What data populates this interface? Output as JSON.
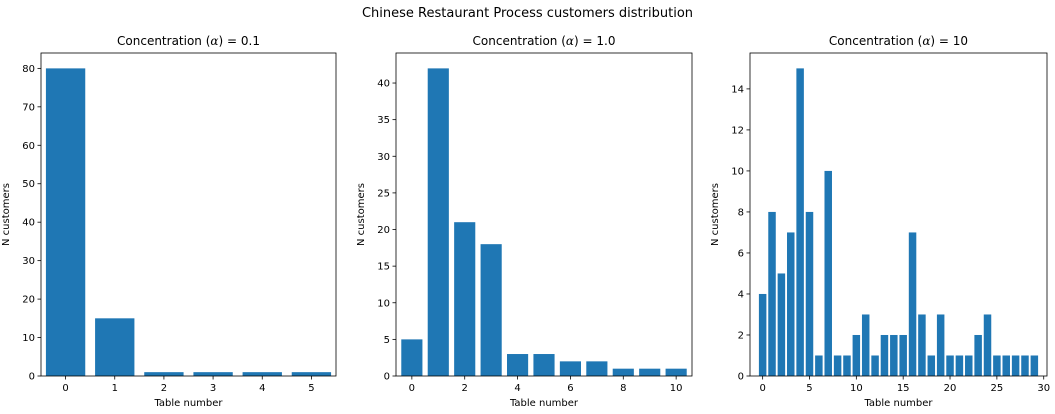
{
  "figure": {
    "suptitle": "Chinese Restaurant Process customers distribution"
  },
  "chart_data": [
    {
      "type": "bar",
      "title": "Concentration (α) = 0.1",
      "xlabel": "Table number",
      "ylabel": "N customers",
      "x": [
        0,
        1,
        2,
        3,
        4,
        5
      ],
      "values": [
        80,
        15,
        1,
        1,
        1,
        1
      ],
      "xlim": [
        -0.5,
        5.5
      ],
      "ylim": [
        0,
        84
      ],
      "xticks": [
        0,
        1,
        2,
        3,
        4,
        5
      ],
      "yticks": [
        0,
        10,
        20,
        30,
        40,
        50,
        60,
        70,
        80
      ],
      "color": "#1f77b4",
      "grid": false
    },
    {
      "type": "bar",
      "title": "Concentration (α) = 1.0",
      "xlabel": "Table number",
      "ylabel": "N customers",
      "x": [
        0,
        1,
        2,
        3,
        4,
        5,
        6,
        7,
        8,
        9,
        10
      ],
      "values": [
        5,
        42,
        21,
        18,
        3,
        3,
        2,
        2,
        1,
        1,
        1
      ],
      "xlim": [
        -0.6,
        10.6
      ],
      "ylim": [
        0,
        44.1
      ],
      "xticks": [
        0,
        2,
        4,
        6,
        8,
        10
      ],
      "yticks": [
        0,
        5,
        10,
        15,
        20,
        25,
        30,
        35,
        40
      ],
      "color": "#1f77b4",
      "grid": false
    },
    {
      "type": "bar",
      "title": "Concentration (α) = 10",
      "xlabel": "Table number",
      "ylabel": "N customers",
      "x": [
        0,
        1,
        2,
        3,
        4,
        5,
        6,
        7,
        8,
        9,
        10,
        11,
        12,
        13,
        14,
        15,
        16,
        17,
        18,
        19,
        20,
        21,
        22,
        23,
        24,
        25,
        26,
        27,
        28,
        29
      ],
      "values": [
        4,
        8,
        5,
        7,
        15,
        8,
        1,
        10,
        1,
        1,
        2,
        3,
        1,
        2,
        2,
        2,
        7,
        3,
        1,
        3,
        1,
        1,
        1,
        2,
        3,
        1,
        1,
        1,
        1,
        1
      ],
      "xlim": [
        -1.35,
        30.35
      ],
      "ylim": [
        0,
        15.75
      ],
      "xticks": [
        0,
        5,
        10,
        15,
        20,
        25,
        30
      ],
      "yticks": [
        0,
        2,
        4,
        6,
        8,
        10,
        12,
        14
      ],
      "color": "#1f77b4",
      "grid": false
    }
  ]
}
